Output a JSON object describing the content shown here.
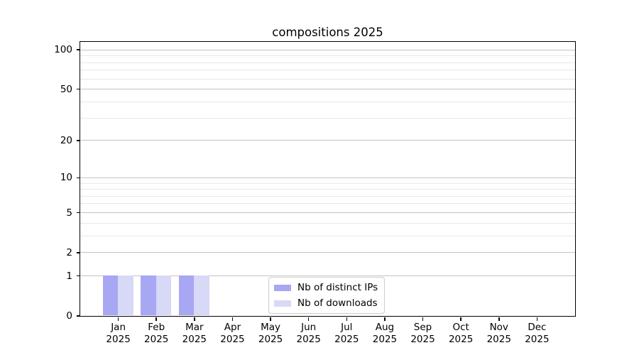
{
  "chart_data": {
    "type": "bar",
    "title": "compositions 2025",
    "categories": [
      "Jan",
      "Feb",
      "Mar",
      "Apr",
      "May",
      "Jun",
      "Jul",
      "Aug",
      "Sep",
      "Oct",
      "Nov",
      "Dec"
    ],
    "category_year_label": "2025",
    "series": [
      {
        "name": "Nb of distinct IPs",
        "color": "#a7a7f3",
        "values": [
          1,
          1,
          1,
          0,
          0,
          0,
          0,
          0,
          0,
          0,
          0,
          0
        ]
      },
      {
        "name": "Nb of downloads",
        "color": "#d8d8f7",
        "values": [
          1,
          1,
          1,
          0,
          0,
          0,
          0,
          0,
          0,
          0,
          0,
          0
        ]
      }
    ],
    "y_axis": {
      "scale": "log10(value+1)",
      "range": [
        0,
        115
      ],
      "major_ticks": [
        0,
        1,
        2,
        5,
        10,
        20,
        50,
        100
      ],
      "minor_ticks": [
        3,
        4,
        6,
        7,
        8,
        9,
        30,
        40,
        60,
        70,
        80,
        90
      ]
    },
    "grid": {
      "axis": "y",
      "major_color": "#c3c3c3",
      "minor_color": "#e8e8e8"
    },
    "legend": {
      "position": "lower-center"
    }
  }
}
